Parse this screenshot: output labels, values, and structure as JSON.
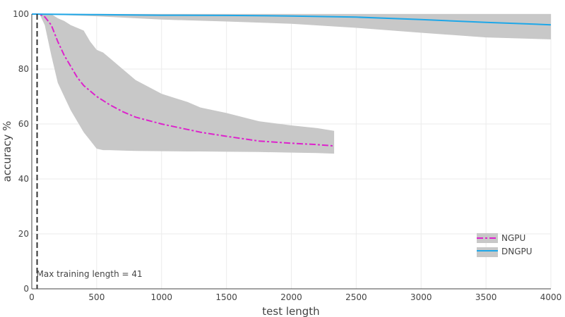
{
  "chart_data": {
    "type": "line",
    "xlabel": "test length",
    "ylabel": "accuracy %",
    "xlim": [
      0,
      4000
    ],
    "ylim": [
      0,
      100
    ],
    "x_ticks": [
      0,
      500,
      1000,
      1500,
      2000,
      2500,
      3000,
      3500,
      4000
    ],
    "y_ticks": [
      0,
      20,
      40,
      60,
      80,
      100
    ],
    "grid": true,
    "legend_position": "bottom-right",
    "annotation": {
      "text": "Max training length = 41",
      "x": 41
    },
    "series": [
      {
        "name": "NGPU",
        "color": "#dd22cc",
        "dash": "dashdot",
        "x": [
          1,
          41,
          60,
          100,
          150,
          200,
          250,
          300,
          350,
          400,
          450,
          500,
          550,
          600,
          700,
          800,
          1000,
          1200,
          1300,
          1500,
          1750,
          2000,
          2200,
          2330
        ],
        "y": [
          100,
          100,
          100,
          99,
          96,
          90,
          85,
          81,
          77,
          74,
          72,
          70,
          68.5,
          67,
          64.5,
          62.5,
          60,
          58,
          57,
          55.5,
          53.8,
          53,
          52.5,
          52
        ],
        "band_upper": [
          100,
          100,
          100,
          100,
          100,
          98.5,
          97.5,
          96,
          95,
          94,
          90,
          87,
          86,
          84,
          80,
          76,
          71,
          68,
          66,
          64,
          61,
          59.5,
          58.5,
          57.5
        ],
        "band_lower": [
          100,
          100,
          100,
          96,
          85,
          75,
          70,
          65,
          61,
          57,
          54,
          51,
          50.5,
          50.5,
          50.3,
          50.2,
          50.1,
          50,
          50,
          49.9,
          49.8,
          49.6,
          49.4,
          49.2
        ]
      },
      {
        "name": "DNGPU",
        "color": "#1ea7e8",
        "dash": "solid",
        "x": [
          1,
          500,
          1000,
          1500,
          2000,
          2500,
          3000,
          3500,
          4000
        ],
        "y": [
          100,
          99.8,
          99.6,
          99.5,
          99.3,
          98.9,
          98,
          97,
          96.1
        ],
        "band_upper": [
          100,
          100,
          100,
          100,
          100,
          100,
          100,
          100,
          100
        ],
        "band_lower": [
          100,
          99.2,
          98,
          97.3,
          96.5,
          95,
          93.2,
          91.5,
          90.8
        ]
      }
    ]
  }
}
